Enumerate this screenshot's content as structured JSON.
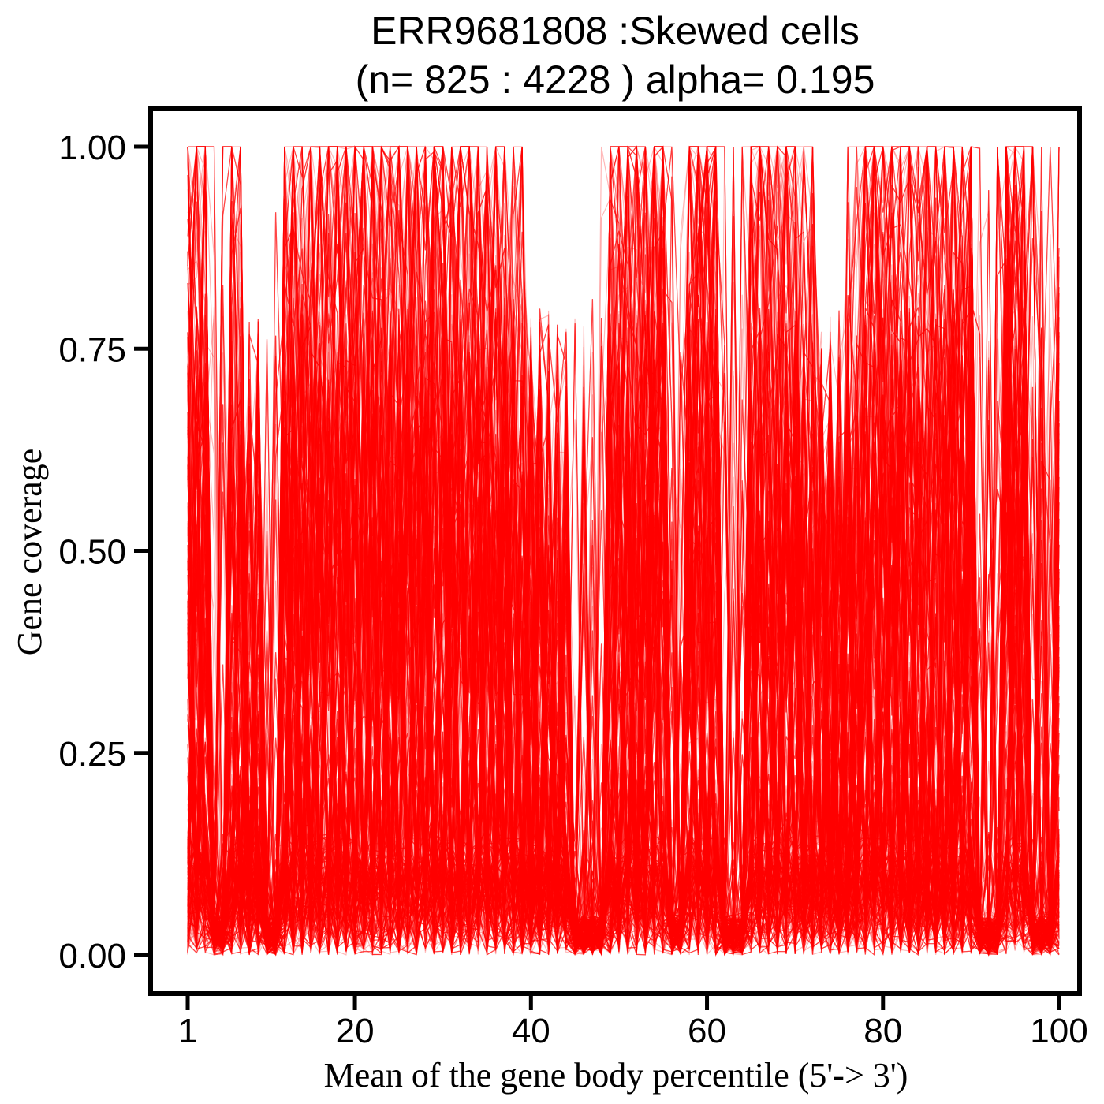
{
  "chart_data": {
    "type": "line",
    "title": "ERR9681808 :Skewed cells",
    "subtitle": "(n= 825 : 4228 ) alpha= 0.195",
    "xlabel": "Mean of the gene body percentile (5'-> 3')",
    "ylabel": "Gene coverage",
    "xlim": [
      1,
      100
    ],
    "ylim": [
      0,
      1
    ],
    "x_ticks": [
      1,
      20,
      40,
      60,
      80,
      100
    ],
    "y_ticks": [
      0.0,
      0.25,
      0.5,
      0.75,
      1.0
    ],
    "x_tick_labels": [
      "1",
      "20",
      "40",
      "60",
      "80",
      "100"
    ],
    "y_tick_labels": [
      "0.00",
      "0.25",
      "0.50",
      "0.75",
      "1.00"
    ],
    "series_count": 825,
    "line_color": "#ff0000",
    "grid": false,
    "legend": "none",
    "coverage_peak_regions": [
      {
        "x": [
          1,
          3
        ],
        "level": "high"
      },
      {
        "x": [
          15,
          26
        ],
        "level": "high"
      },
      {
        "x": [
          33,
          35
        ],
        "level": "high"
      },
      {
        "x": [
          50,
          53
        ],
        "level": "high"
      },
      {
        "x": [
          58,
          60
        ],
        "level": "high"
      },
      {
        "x": [
          66,
          68
        ],
        "level": "high"
      },
      {
        "x": [
          80,
          90
        ],
        "level": "high"
      },
      {
        "x": [
          94,
          96
        ],
        "level": "high"
      }
    ],
    "coverage_trough_regions": [
      {
        "x": [
          4,
          5
        ],
        "level": "low"
      },
      {
        "x": [
          10,
          11
        ],
        "level": "low"
      },
      {
        "x": [
          45,
          48
        ],
        "level": "low"
      },
      {
        "x": [
          56,
          57
        ],
        "level": "low"
      },
      {
        "x": [
          62,
          64
        ],
        "level": "low"
      },
      {
        "x": [
          91,
          93
        ],
        "level": "low"
      },
      {
        "x": [
          97,
          99
        ],
        "level": "low"
      }
    ]
  }
}
